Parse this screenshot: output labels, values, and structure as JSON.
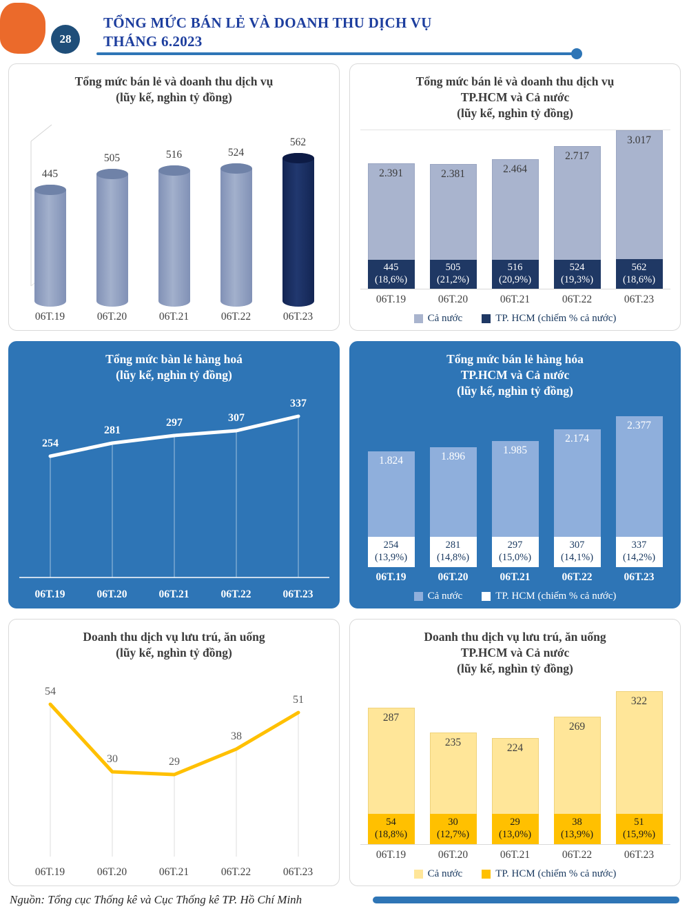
{
  "page": {
    "number": "28",
    "header_title_line1": "TỔNG MỨC BÁN LẺ VÀ DOANH THU DỊCH VỤ",
    "header_title_line2": "THÁNG 6.2023",
    "source_note": "Nguồn: Tổng cục Thống kê và Cục Thống kê TP. Hồ Chí Minh"
  },
  "legend": {
    "country_label": "Cả nước",
    "hcm_label": "TP. HCM (chiếm % cả nước)"
  },
  "colors": {
    "accent_orange": "#EB6A2B",
    "header_blue": "#1D3E9E",
    "rule_blue": "#2E75B6",
    "panel_blue": "#2E75B6",
    "navy": "#1F3864",
    "bar_gray_blue": "#8E9EC0",
    "bar_navy_highlight": "#16295E",
    "stack_light_gray_blue": "#A9B4CE",
    "stack_light_blue": "#8FAFDC",
    "gold": "#FFC000",
    "light_yellow": "#FFE699"
  },
  "chart_data": [
    {
      "id": "retail-services-total",
      "type": "bar",
      "title_lines": [
        "Tổng mức bán lẻ và doanh thu dịch vụ",
        "(lũy kế, nghìn tỷ đồng)"
      ],
      "categories": [
        "06T.19",
        "06T.20",
        "06T.21",
        "06T.22",
        "06T.23"
      ],
      "values": [
        445,
        505,
        516,
        524,
        562
      ],
      "value_labels": [
        "445",
        "505",
        "516",
        "524",
        "562"
      ],
      "highlight_last": true,
      "ylabel": "nghìn tỷ đồng",
      "ylim": [
        0,
        600
      ],
      "grid": false
    },
    {
      "id": "retail-services-hcm-vs-country",
      "type": "stacked-bar",
      "title_lines": [
        "Tổng mức bán lẻ và doanh thu dịch vụ",
        "TP.HCM và Cả nước",
        "(lũy kế, nghìn tỷ đồng)"
      ],
      "categories": [
        "06T.19",
        "06T.20",
        "06T.21",
        "06T.22",
        "06T.23"
      ],
      "series": [
        {
          "name": "Cả nước",
          "values": [
            2391,
            2381,
            2464,
            2717,
            3017
          ],
          "labels": [
            "2.391",
            "2.381",
            "2.464",
            "2.717",
            "3.017"
          ]
        },
        {
          "name": "TP. HCM (chiếm % cả nước)",
          "values": [
            445,
            505,
            516,
            524,
            562
          ],
          "labels": [
            "445",
            "505",
            "516",
            "524",
            "562"
          ],
          "pct_labels": [
            "(18,6%)",
            "(21,2%)",
            "(20,9%)",
            "(19,3%)",
            "(18,6%)"
          ]
        }
      ],
      "ylim": [
        0,
        3100
      ],
      "legend_position": "bottom"
    },
    {
      "id": "goods-retail-total",
      "type": "line",
      "title_lines": [
        "Tổng mức bàn lẻ hàng hoá",
        "(lũy kế, nghìn tỷ đồng)"
      ],
      "categories": [
        "06T.19",
        "06T.20",
        "06T.21",
        "06T.22",
        "06T.23"
      ],
      "values": [
        254,
        281,
        297,
        307,
        337
      ],
      "value_labels": [
        "254",
        "281",
        "297",
        "307",
        "337"
      ],
      "ylim": [
        0,
        360
      ],
      "grid": true
    },
    {
      "id": "goods-retail-hcm-vs-country",
      "type": "stacked-bar",
      "title_lines": [
        "Tổng mức bán lẻ hàng hóa",
        "TP.HCM và Cả nước",
        "(lũy kế, nghìn tỷ đồng)"
      ],
      "categories": [
        "06T.19",
        "06T.20",
        "06T.21",
        "06T.22",
        "06T.23"
      ],
      "series": [
        {
          "name": "Cả nước",
          "values": [
            1824,
            1896,
            1985,
            2174,
            2377
          ],
          "labels": [
            "1.824",
            "1.896",
            "1.985",
            "2.174",
            "2.377"
          ]
        },
        {
          "name": "TP. HCM (chiếm % cả nước)",
          "values": [
            254,
            281,
            297,
            307,
            337
          ],
          "labels": [
            "254",
            "281",
            "297",
            "307",
            "337"
          ],
          "pct_labels": [
            "(13,9%)",
            "(14,8%)",
            "(15,0%)",
            "(14,1%)",
            "(14,2%)"
          ]
        }
      ],
      "ylim": [
        0,
        2500
      ],
      "legend_position": "bottom"
    },
    {
      "id": "accommodation-food-revenue",
      "type": "line",
      "title_lines": [
        "Doanh thu dịch vụ lưu trú, ăn uống",
        "(lũy kế, nghìn tỷ đồng)"
      ],
      "categories": [
        "06T.19",
        "06T.20",
        "06T.21",
        "06T.22",
        "06T.23"
      ],
      "values": [
        54,
        30,
        29,
        38,
        51
      ],
      "value_labels": [
        "54",
        "30",
        "29",
        "38",
        "51"
      ],
      "ylim": [
        0,
        60
      ],
      "grid": true
    },
    {
      "id": "accommodation-food-hcm-vs-country",
      "type": "stacked-bar",
      "title_lines": [
        "Doanh thu dịch vụ lưu trú, ăn uống",
        "TP.HCM và Cả nước",
        "(lũy kế, nghìn tỷ đồng)"
      ],
      "categories": [
        "06T.19",
        "06T.20",
        "06T.21",
        "06T.22",
        "06T.23"
      ],
      "series": [
        {
          "name": "Cả nước",
          "values": [
            287,
            235,
            224,
            269,
            322
          ],
          "labels": [
            "287",
            "235",
            "224",
            "269",
            "322"
          ]
        },
        {
          "name": "TP. HCM (chiếm % cả nước)",
          "values": [
            54,
            30,
            29,
            38,
            51
          ],
          "labels": [
            "54",
            "30",
            "29",
            "38",
            "51"
          ],
          "pct_labels": [
            "(18,8%)",
            "(12,7%)",
            "(13,0%)",
            "(13,9%)",
            "(15,9%)"
          ]
        }
      ],
      "ylim": [
        0,
        340
      ],
      "legend_position": "bottom"
    }
  ]
}
